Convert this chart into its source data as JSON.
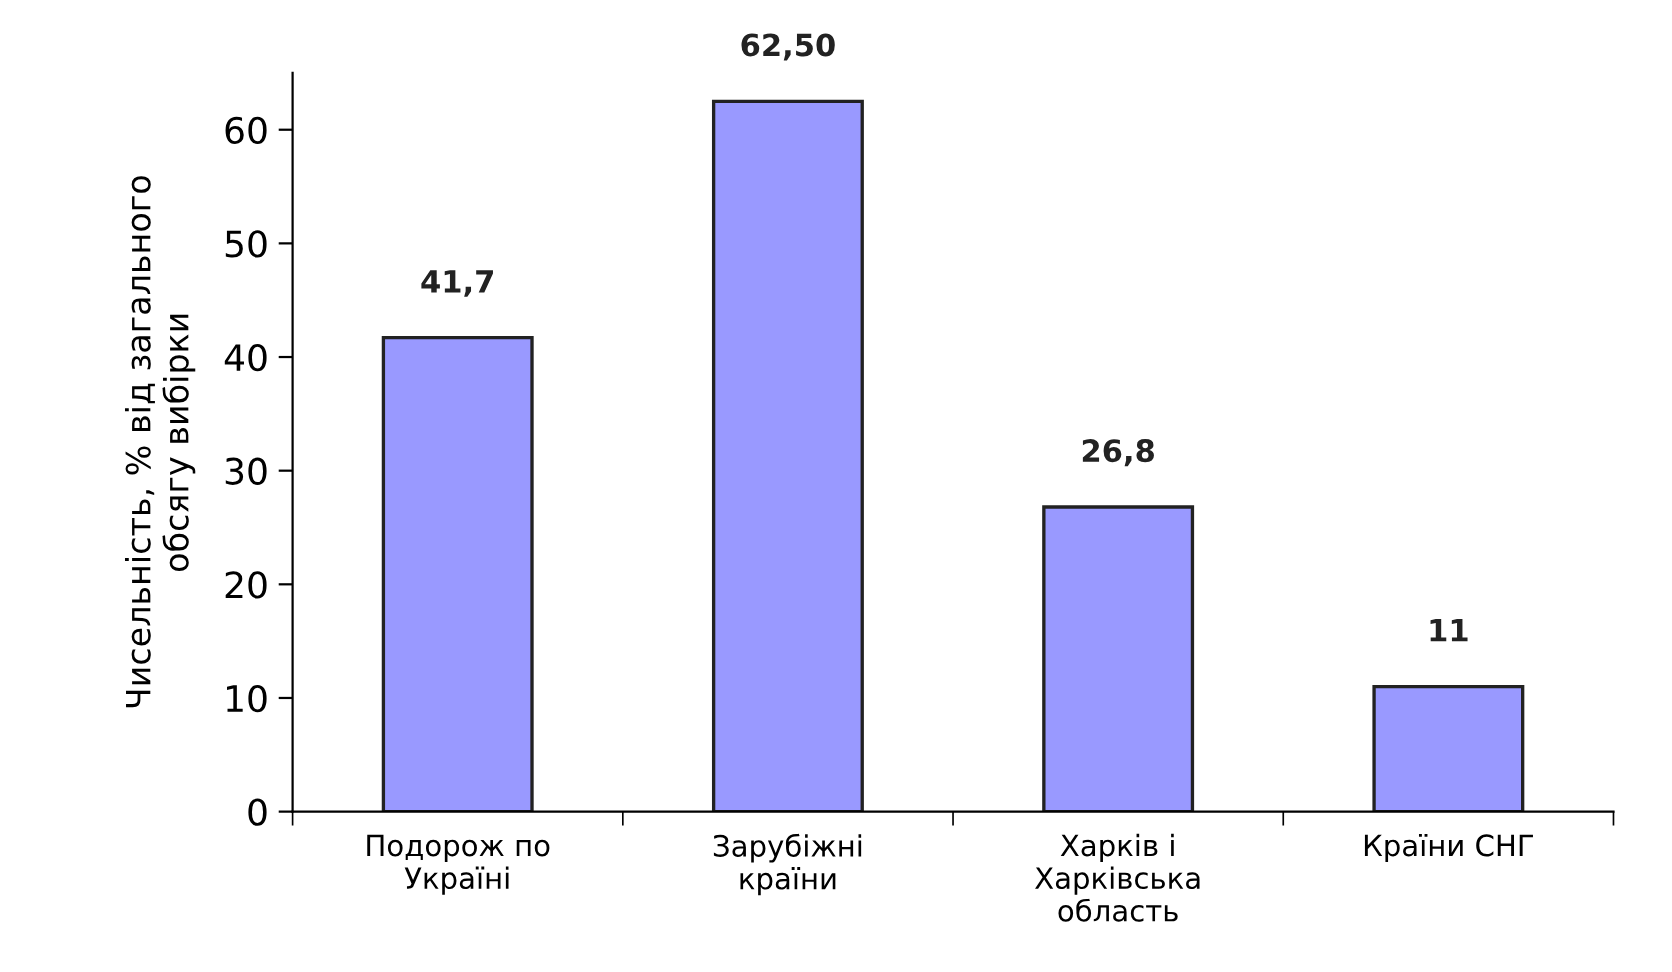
{
  "chart_data": {
    "type": "bar",
    "categories": [
      "Подорож по\nУкраїні",
      "Зарубіжні\nкраїни",
      "Харків і\nХарківська\nобласть",
      "Країни СНГ"
    ],
    "values": [
      41.7,
      62.5,
      26.8,
      11
    ],
    "value_labels": [
      "41,7",
      "62,50",
      "26,8",
      "11"
    ],
    "color": "#9999ff",
    "ylabel": "Чисельність, % від загального\nобсягу вибірки",
    "ylim": [
      0,
      65
    ],
    "yticks": [
      0,
      10,
      20,
      30,
      40,
      50,
      60
    ],
    "grid": false,
    "legend": false
  }
}
